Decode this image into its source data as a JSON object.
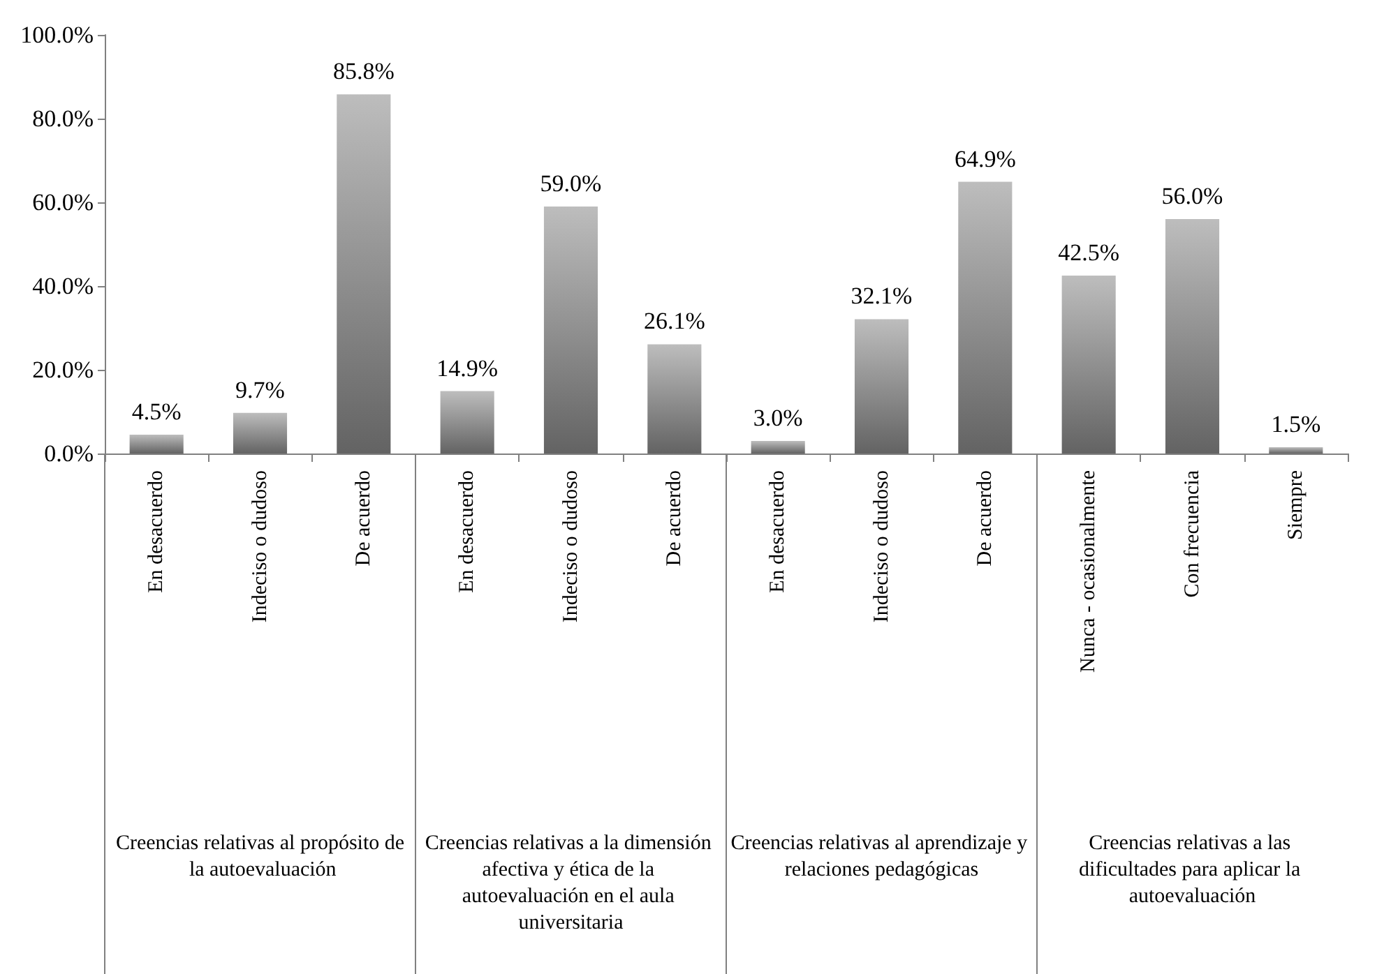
{
  "chart_data": {
    "type": "bar",
    "categories": [
      "En desacuerdo",
      "Indeciso o dudoso",
      "De acuerdo",
      "En desacuerdo",
      "Indeciso o dudoso",
      "De acuerdo",
      "En desacuerdo",
      "Indeciso o dudoso",
      "De acuerdo",
      "Nunca - ocasionalmente",
      "Con frecuencia",
      "Siempre"
    ],
    "values": [
      4.5,
      9.7,
      85.8,
      14.9,
      59.0,
      26.1,
      3.0,
      32.1,
      64.9,
      42.5,
      56.0,
      1.5
    ],
    "value_labels": [
      "4.5%",
      "9.7%",
      "85.8%",
      "14.9%",
      "59.0%",
      "26.1%",
      "3.0%",
      "32.1%",
      "64.9%",
      "42.5%",
      "56.0%",
      "1.5%"
    ],
    "color": "#999999",
    "ylim": [
      0,
      100
    ],
    "yticks": [
      {
        "value": 0,
        "label": "0.0%"
      },
      {
        "value": 20,
        "label": "20.0%"
      },
      {
        "value": 40,
        "label": "40.0%"
      },
      {
        "value": 60,
        "label": "60.0%"
      },
      {
        "value": 80,
        "label": "80.0%"
      },
      {
        "value": 100,
        "label": "100.0%"
      }
    ],
    "annotations": [
      "Creencias relativas al propósito de la autoevaluación",
      "Creencias relativas a la dimensión afectiva y ética de la autoevaluación en el aula universitaria",
      "Creencias relativas al aprendizaje y relaciones pedagógicas",
      "Creencias relativas a las dificultades para aplicar la autoevaluación"
    ]
  }
}
